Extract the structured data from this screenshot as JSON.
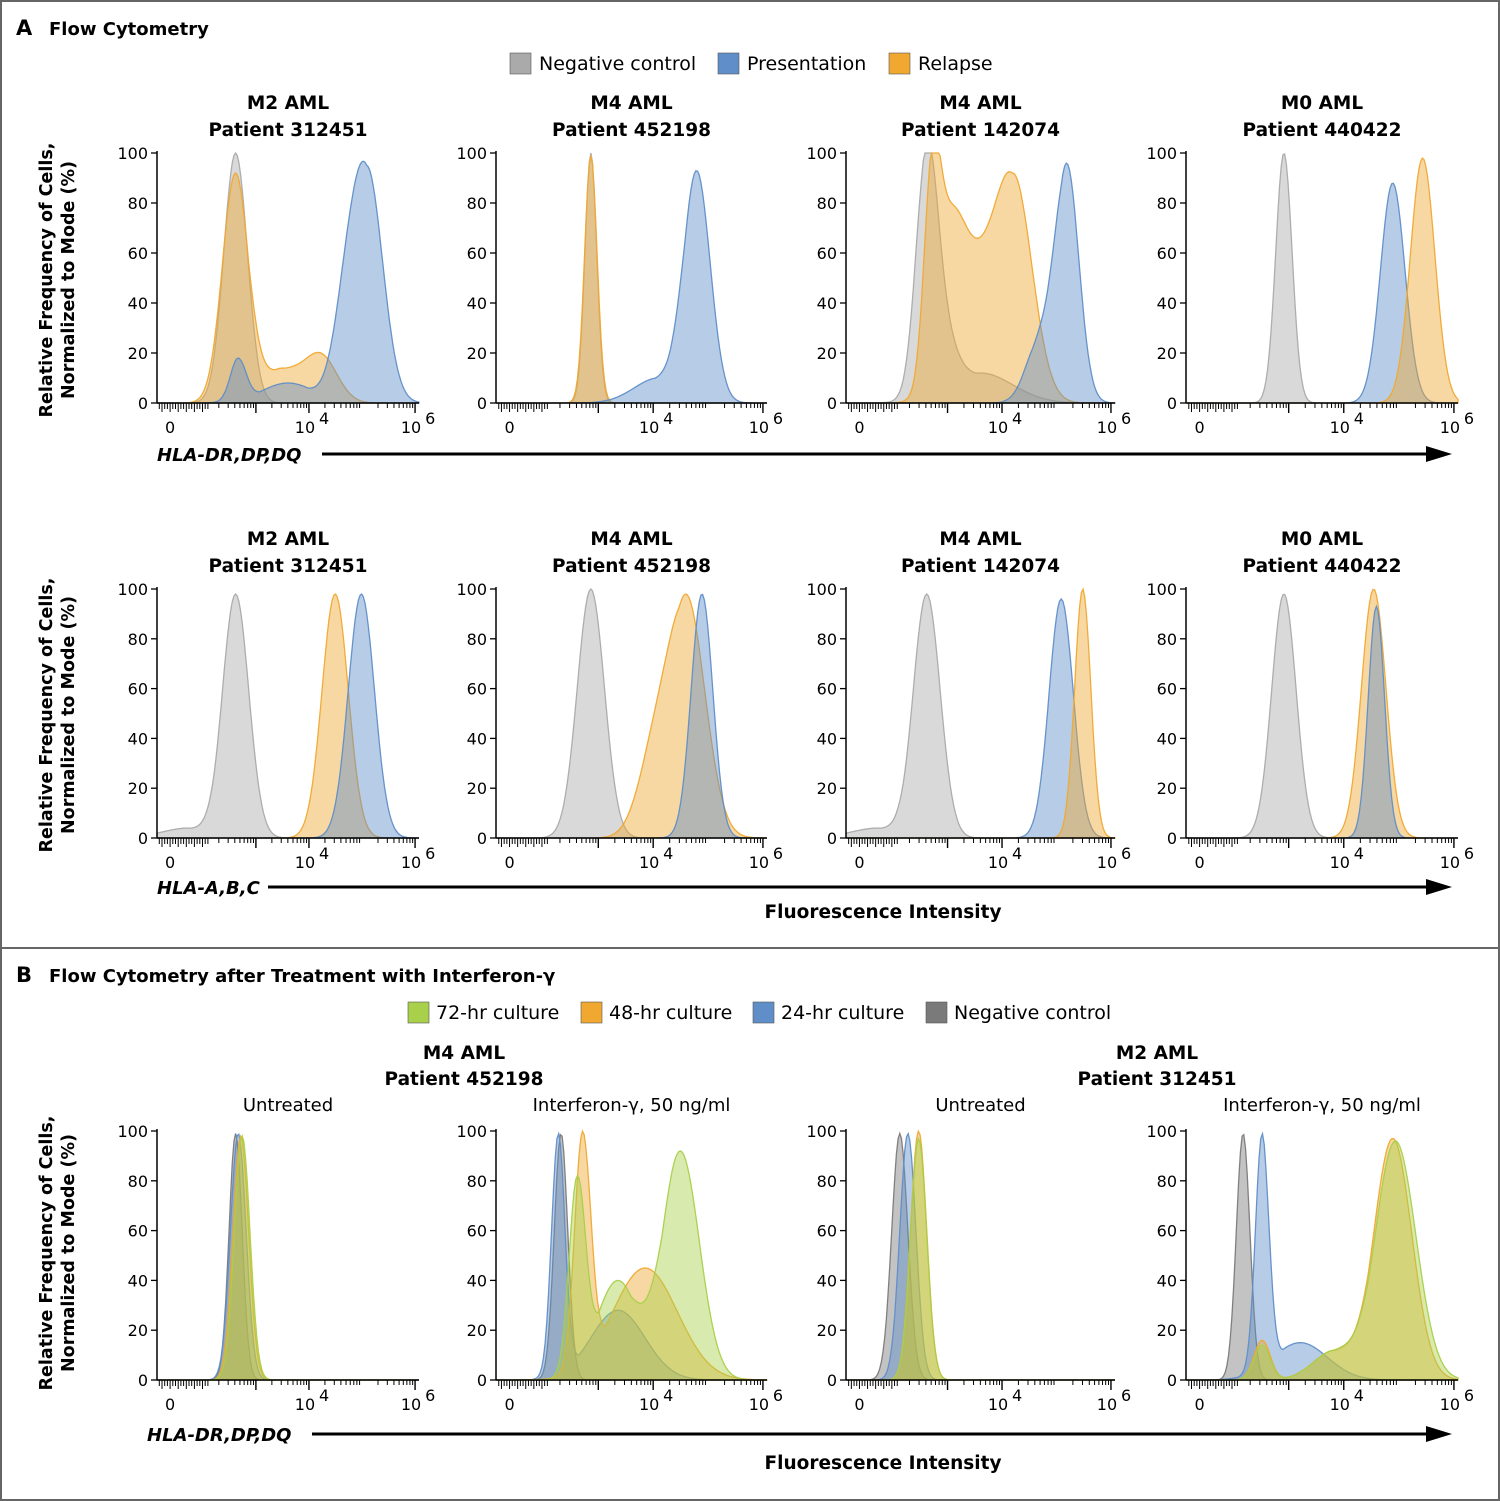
{
  "colors": {
    "negative": "#aaaaaa",
    "negative_dark": "#6f6f6f",
    "presentation": "#5f8ec8",
    "relapse": "#f0a830",
    "h72": "#a8d04a",
    "h48": "#f0a830",
    "h24": "#5f8ec8",
    "negB": "#7a7a7a"
  },
  "sectionA": {
    "letter": "A",
    "title": "Flow Cytometry",
    "legend": [
      {
        "label": "Negative control",
        "key": "negative"
      },
      {
        "label": "Presentation",
        "key": "presentation"
      },
      {
        "label": "Relapse",
        "key": "relapse"
      }
    ],
    "y_axis_label": [
      "Relative Frequency of Cells,",
      "Normalized to Mode (%)"
    ],
    "row1_marker": "HLA-DR,DP,DQ",
    "row2_marker": "HLA-A,B,C",
    "x_axis_label": "Fluorescence Intensity"
  },
  "sectionB": {
    "letter": "B",
    "title": "Flow Cytometry after Treatment with Interferon-γ",
    "legend": [
      {
        "label": "72-hr culture",
        "key": "h72"
      },
      {
        "label": "48-hr culture",
        "key": "h48"
      },
      {
        "label": "24-hr culture",
        "key": "h24"
      },
      {
        "label": "Negative control",
        "key": "negB"
      }
    ],
    "groups": [
      {
        "title1": "M4 AML",
        "title2": "Patient 452198"
      },
      {
        "title1": "M2 AML",
        "title2": "Patient 312451"
      }
    ],
    "subtitles": [
      "Untreated",
      "Interferon-γ, 50 ng/ml",
      "Untreated",
      "Interferon-γ, 50 ng/ml"
    ],
    "y_axis_label": [
      "Relative Frequency of Cells,",
      "Normalized to Mode (%)"
    ],
    "marker": "HLA-DR,DP,DQ",
    "x_axis_label": "Fluorescence Intensity"
  },
  "axis": {
    "y_ticks": [
      "0",
      "20",
      "40",
      "60",
      "80",
      "100"
    ],
    "x_tick_zero": "0",
    "x_tick_base": "10",
    "x_tick_exps": [
      "4",
      "6"
    ]
  },
  "chart_data": [
    {
      "type": "histogram",
      "section": "A",
      "row": 1,
      "marker": "HLA-DR,DP,DQ",
      "title": [
        "M2 AML",
        "Patient 312451"
      ],
      "ylim": [
        0,
        100
      ],
      "series": [
        {
          "name": "Negative control",
          "key": "negative",
          "peaks": [
            [
              0.3,
              100,
              0.045
            ]
          ]
        },
        {
          "name": "Relapse",
          "key": "relapse",
          "peaks": [
            [
              0.3,
              92,
              0.05
            ],
            [
              0.48,
              14,
              0.09
            ],
            [
              0.63,
              18,
              0.06
            ]
          ]
        },
        {
          "name": "Presentation",
          "key": "presentation",
          "peaks": [
            [
              0.31,
              18,
              0.03
            ],
            [
              0.5,
              8,
              0.1
            ],
            [
              0.8,
              95,
              0.06
            ],
            [
              0.72,
              30,
              0.05
            ]
          ]
        }
      ]
    },
    {
      "type": "histogram",
      "section": "A",
      "row": 1,
      "marker": "HLA-DR,DP,DQ",
      "title": [
        "M4 AML",
        "Patient 452198"
      ],
      "ylim": [
        0,
        100
      ],
      "series": [
        {
          "name": "Negative control",
          "key": "negative",
          "peaks": [
            [
              0.35,
              100,
              0.022
            ]
          ]
        },
        {
          "name": "Relapse",
          "key": "relapse",
          "peaks": [
            [
              0.35,
              99,
              0.023
            ]
          ]
        },
        {
          "name": "Presentation",
          "key": "presentation",
          "peaks": [
            [
              0.74,
              93,
              0.05
            ],
            [
              0.6,
              10,
              0.09
            ]
          ]
        }
      ]
    },
    {
      "type": "histogram",
      "section": "A",
      "row": 1,
      "marker": "HLA-DR,DP,DQ",
      "title": [
        "M4 AML",
        "Patient 142074"
      ],
      "ylim": [
        0,
        100
      ],
      "series": [
        {
          "name": "Negative control",
          "key": "negative",
          "peaks": [
            [
              0.3,
              100,
              0.04
            ],
            [
              0.36,
              22,
              0.05
            ],
            [
              0.5,
              12,
              0.12
            ]
          ]
        },
        {
          "name": "Relapse",
          "key": "relapse",
          "peaks": [
            [
              0.32,
              80,
              0.03
            ],
            [
              0.46,
              55,
              0.08
            ],
            [
              0.62,
              92,
              0.07
            ],
            [
              0.38,
              45,
              0.05
            ]
          ]
        },
        {
          "name": "Presentation",
          "key": "presentation",
          "peaks": [
            [
              0.82,
              96,
              0.045
            ],
            [
              0.72,
              25,
              0.05
            ]
          ]
        }
      ]
    },
    {
      "type": "histogram",
      "section": "A",
      "row": 1,
      "marker": "HLA-DR,DP,DQ",
      "title": [
        "M0 AML",
        "Patient 440422"
      ],
      "ylim": [
        0,
        100
      ],
      "series": [
        {
          "name": "Negative control",
          "key": "negative",
          "peaks": [
            [
              0.36,
              100,
              0.03
            ]
          ]
        },
        {
          "name": "Presentation",
          "key": "presentation",
          "peaks": [
            [
              0.76,
              88,
              0.045
            ]
          ]
        },
        {
          "name": "Relapse",
          "key": "relapse",
          "peaks": [
            [
              0.87,
              98,
              0.045
            ]
          ]
        }
      ]
    },
    {
      "type": "histogram",
      "section": "A",
      "row": 2,
      "marker": "HLA-A,B,C",
      "title": [
        "M2 AML",
        "Patient 312451"
      ],
      "ylim": [
        0,
        100
      ],
      "series": [
        {
          "name": "Negative control",
          "key": "negative",
          "peaks": [
            [
              0.3,
              98,
              0.05
            ],
            [
              0.12,
              4,
              0.1
            ]
          ]
        },
        {
          "name": "Relapse",
          "key": "relapse",
          "peaks": [
            [
              0.68,
              98,
              0.05
            ]
          ]
        },
        {
          "name": "Presentation",
          "key": "presentation",
          "peaks": [
            [
              0.78,
              98,
              0.05
            ]
          ]
        }
      ]
    },
    {
      "type": "histogram",
      "section": "A",
      "row": 2,
      "marker": "HLA-A,B,C",
      "title": [
        "M4 AML",
        "Patient 452198"
      ],
      "ylim": [
        0,
        100
      ],
      "series": [
        {
          "name": "Negative control",
          "key": "negative",
          "peaks": [
            [
              0.35,
              100,
              0.05
            ]
          ]
        },
        {
          "name": "Relapse",
          "key": "relapse",
          "peaks": [
            [
              0.7,
              98,
              0.07
            ],
            [
              0.58,
              30,
              0.06
            ]
          ]
        },
        {
          "name": "Presentation",
          "key": "presentation",
          "peaks": [
            [
              0.76,
              98,
              0.04
            ]
          ]
        }
      ]
    },
    {
      "type": "histogram",
      "section": "A",
      "row": 2,
      "marker": "HLA-A,B,C",
      "title": [
        "M4 AML",
        "Patient 142074"
      ],
      "ylim": [
        0,
        100
      ],
      "series": [
        {
          "name": "Negative control",
          "key": "negative",
          "peaks": [
            [
              0.3,
              98,
              0.05
            ],
            [
              0.12,
              4,
              0.1
            ]
          ]
        },
        {
          "name": "Presentation",
          "key": "presentation",
          "peaks": [
            [
              0.8,
              96,
              0.045
            ]
          ]
        },
        {
          "name": "Relapse",
          "key": "relapse",
          "peaks": [
            [
              0.88,
              100,
              0.03
            ]
          ]
        }
      ]
    },
    {
      "type": "histogram",
      "section": "A",
      "row": 2,
      "marker": "HLA-A,B,C",
      "title": [
        "M0 AML",
        "Patient 440422"
      ],
      "ylim": [
        0,
        100
      ],
      "series": [
        {
          "name": "Negative control",
          "key": "negative",
          "peaks": [
            [
              0.36,
              98,
              0.045
            ]
          ]
        },
        {
          "name": "Relapse",
          "key": "relapse",
          "peaks": [
            [
              0.69,
              100,
              0.045
            ]
          ]
        },
        {
          "name": "Presentation",
          "key": "presentation",
          "peaks": [
            [
              0.7,
              93,
              0.03
            ]
          ]
        }
      ]
    },
    {
      "type": "histogram",
      "section": "B",
      "marker": "HLA-DR,DP,DQ",
      "title": [
        "M4 AML",
        "Patient 452198",
        "Untreated"
      ],
      "ylim": [
        0,
        100
      ],
      "series": [
        {
          "name": "Negative control",
          "key": "negB",
          "peaks": [
            [
              0.3,
              99,
              0.025
            ]
          ]
        },
        {
          "name": "24-hr culture",
          "key": "h24",
          "peaks": [
            [
              0.31,
              99,
              0.03
            ]
          ]
        },
        {
          "name": "48-hr culture",
          "key": "h48",
          "peaks": [
            [
              0.32,
              98,
              0.03
            ]
          ]
        },
        {
          "name": "72-hr culture",
          "key": "h72",
          "peaks": [
            [
              0.325,
              98,
              0.03
            ]
          ]
        }
      ]
    },
    {
      "type": "histogram",
      "section": "B",
      "marker": "HLA-DR,DP,DQ",
      "title": [
        "M4 AML",
        "Patient 452198",
        "Interferon-γ, 50 ng/ml"
      ],
      "ylim": [
        0,
        100
      ],
      "series": [
        {
          "name": "Negative control",
          "key": "negB",
          "peaks": [
            [
              0.24,
              99,
              0.025
            ]
          ]
        },
        {
          "name": "24-hr culture",
          "key": "h24",
          "peaks": [
            [
              0.23,
              99,
              0.025
            ],
            [
              0.45,
              28,
              0.1
            ]
          ]
        },
        {
          "name": "48-hr culture",
          "key": "h48",
          "peaks": [
            [
              0.32,
              100,
              0.03
            ],
            [
              0.55,
              45,
              0.12
            ]
          ]
        },
        {
          "name": "72-hr culture",
          "key": "h72",
          "peaks": [
            [
              0.3,
              82,
              0.03
            ],
            [
              0.68,
              92,
              0.07
            ],
            [
              0.45,
              40,
              0.08
            ]
          ]
        }
      ]
    },
    {
      "type": "histogram",
      "section": "B",
      "marker": "HLA-DR,DP,DQ",
      "title": [
        "M2 AML",
        "Patient 312451",
        "Untreated"
      ],
      "ylim": [
        0,
        100
      ],
      "series": [
        {
          "name": "Negative control",
          "key": "negB",
          "peaks": [
            [
              0.2,
              99,
              0.03
            ]
          ]
        },
        {
          "name": "24-hr culture",
          "key": "h24",
          "peaks": [
            [
              0.23,
              99,
              0.03
            ]
          ]
        },
        {
          "name": "48-hr culture",
          "key": "h48",
          "peaks": [
            [
              0.27,
              100,
              0.03
            ]
          ]
        },
        {
          "name": "72-hr culture",
          "key": "h72",
          "peaks": [
            [
              0.27,
              97,
              0.03
            ]
          ]
        }
      ]
    },
    {
      "type": "histogram",
      "section": "B",
      "marker": "HLA-DR,DP,DQ",
      "title": [
        "M2 AML",
        "Patient 312451",
        "Interferon-γ, 50 ng/ml"
      ],
      "ylim": [
        0,
        100
      ],
      "series": [
        {
          "name": "Negative control",
          "key": "negB",
          "peaks": [
            [
              0.21,
              99,
              0.025
            ]
          ]
        },
        {
          "name": "24-hr culture",
          "key": "h24",
          "peaks": [
            [
              0.28,
              99,
              0.025
            ],
            [
              0.42,
              15,
              0.1
            ]
          ]
        },
        {
          "name": "48-hr culture",
          "key": "h48",
          "peaks": [
            [
              0.28,
              16,
              0.03
            ],
            [
              0.76,
              97,
              0.07
            ],
            [
              0.55,
              12,
              0.08
            ]
          ]
        },
        {
          "name": "72-hr culture",
          "key": "h72",
          "peaks": [
            [
              0.28,
              14,
              0.03
            ],
            [
              0.77,
              96,
              0.075
            ],
            [
              0.55,
              12,
              0.08
            ]
          ]
        }
      ]
    }
  ]
}
